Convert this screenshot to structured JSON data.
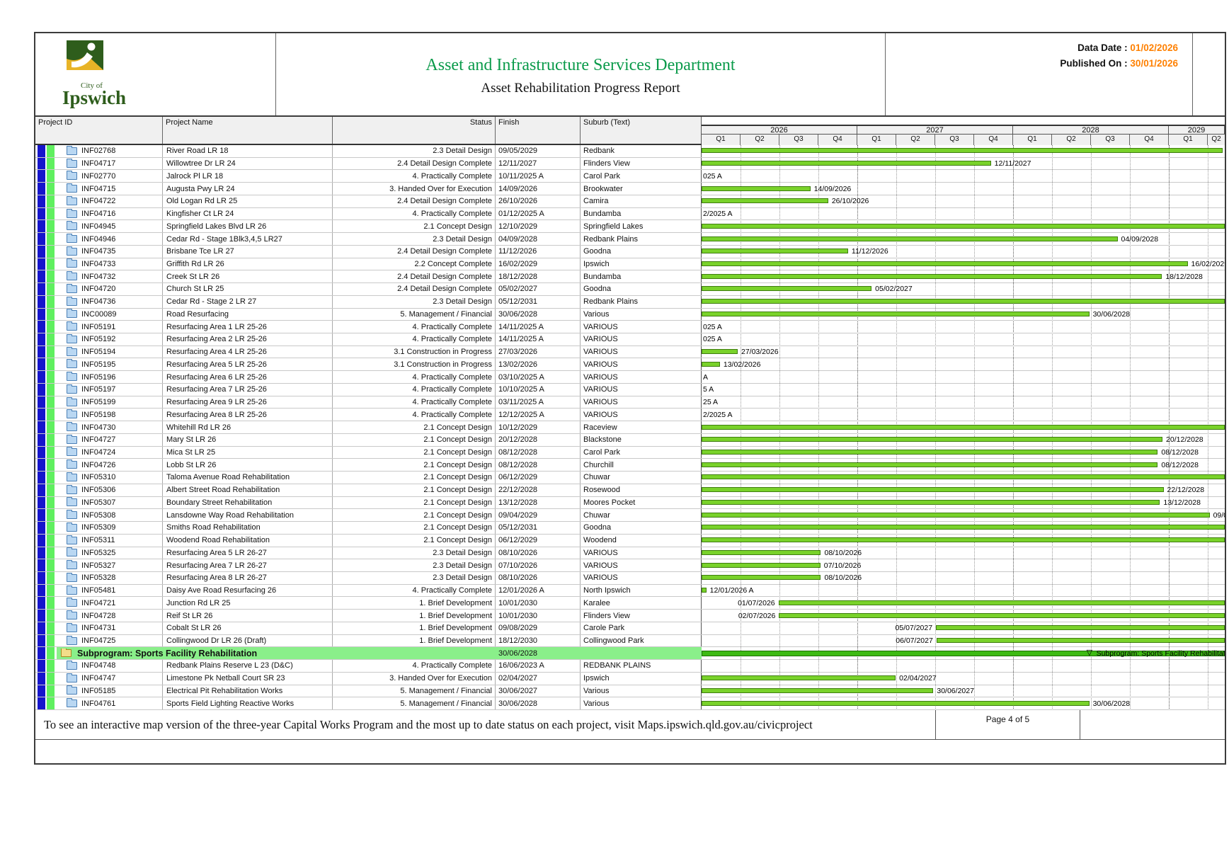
{
  "header": {
    "logo": {
      "city_of": "City of",
      "name": "Ipswich"
    },
    "title": "Asset and Infrastructure Services Department",
    "subtitle": "Asset Rehabilitation Progress Report",
    "data_date_label": "Data Date :",
    "data_date": "01/02/2026",
    "published_label": "Published On :",
    "published": "30/01/2026",
    "title_green": "#0a9a4a",
    "accent_orange": "#FF8000"
  },
  "columns": {
    "id": "Project ID",
    "name": "Project Name",
    "status": "Status",
    "finish": "Finish",
    "suburb": "Suburb (Text)"
  },
  "timeline": {
    "years": [
      {
        "label": "2026",
        "quarters": [
          "Q1",
          "Q2",
          "Q3",
          "Q4"
        ]
      },
      {
        "label": "2027",
        "quarters": [
          "Q1",
          "Q2",
          "Q3",
          "Q4"
        ]
      },
      {
        "label": "2028",
        "quarters": [
          "Q1",
          "Q2",
          "Q3",
          "Q4"
        ]
      },
      {
        "label": "2029",
        "quarters": [
          "Q1",
          "Q2"
        ]
      }
    ],
    "bar_color": "#79d22a",
    "subprogram_bar_color": "#3dba13"
  },
  "rows": [
    {
      "i": "INF02768",
      "n": "River Road LR 18",
      "s": "2.3 Detail Design",
      "f": "09/05/2029",
      "b": "Redbank",
      "g": {
        "m": "end",
        "e": 0.996,
        "l": "09/05/2029"
      }
    },
    {
      "i": "INF04717",
      "n": "Willowtree Dr LR 24",
      "s": "2.4 Detail Design Complete",
      "f": "12/11/2027",
      "b": "Flinders View",
      "g": {
        "m": "end",
        "e": 0.553,
        "l": "12/11/2027"
      }
    },
    {
      "i": "INF02770",
      "n": "Jalrock Pl LR 18",
      "s": "4. Practically Complete",
      "f": "10/11/2025 A",
      "b": "Carol Park",
      "g": {
        "m": "clip",
        "l": "025 A"
      }
    },
    {
      "i": "INF04715",
      "n": "Augusta Pwy LR 24",
      "s": "3. Handed Over for Execution",
      "f": "14/09/2026",
      "b": "Brookwater",
      "g": {
        "m": "end",
        "e": 0.208,
        "l": "14/09/2026"
      }
    },
    {
      "i": "INF04722",
      "n": "Old Logan Rd LR 25",
      "s": "2.4 Detail Design Complete",
      "f": "26/10/2026",
      "b": "Camira",
      "g": {
        "m": "end",
        "e": 0.242,
        "l": "26/10/2026"
      }
    },
    {
      "i": "INF04716",
      "n": "Kingfisher Ct LR 24",
      "s": "4. Practically Complete",
      "f": "01/12/2025 A",
      "b": "Bundamba",
      "g": {
        "m": "clip",
        "l": "2/2025 A"
      }
    },
    {
      "i": "INF04945",
      "n": "Springfield Lakes Blvd LR 26",
      "s": "2.1 Concept Design",
      "f": "12/10/2029",
      "b": "Springfield Lakes",
      "g": {
        "m": "end",
        "e": 1.0,
        "l": ""
      }
    },
    {
      "i": "INF04946",
      "n": "Cedar Rd - Stage 1Blk3,4,5 LR27",
      "s": "2.3 Detail Design",
      "f": "04/09/2028",
      "b": "Redbank Plains",
      "g": {
        "m": "end",
        "e": 0.795,
        "l": "04/09/2028"
      }
    },
    {
      "i": "INF04735",
      "n": "Brisbane Tce LR 27",
      "s": "2.4 Detail Design Complete",
      "f": "11/12/2026",
      "b": "Goodna",
      "g": {
        "m": "end",
        "e": 0.28,
        "l": "11/12/2026"
      }
    },
    {
      "i": "INF04733",
      "n": "Griffith Rd LR 26",
      "s": "2.2 Concept Complete",
      "f": "16/02/2029",
      "b": "Ipswich",
      "g": {
        "m": "end",
        "e": 0.929,
        "l": "16/02/2029"
      }
    },
    {
      "i": "INF04732",
      "n": "Creek St LR 26",
      "s": "2.4 Detail Design Complete",
      "f": "18/12/2028",
      "b": "Bundamba",
      "g": {
        "m": "end",
        "e": 0.88,
        "l": "18/12/2028"
      }
    },
    {
      "i": "INF04720",
      "n": "Church St LR 25",
      "s": "2.4 Detail Design Complete",
      "f": "05/02/2027",
      "b": "Goodna",
      "g": {
        "m": "end",
        "e": 0.325,
        "l": "05/02/2027"
      }
    },
    {
      "i": "INF04736",
      "n": "Cedar Rd - Stage 2 LR 27",
      "s": "2.3 Detail Design",
      "f": "05/12/2031",
      "b": "Redbank Plains",
      "g": {
        "m": "end",
        "e": 1.0,
        "l": ""
      }
    },
    {
      "i": "INC00089",
      "n": "Road Resurfacing",
      "s": "5. Management / Financial",
      "f": "30/06/2028",
      "b": "Various",
      "g": {
        "m": "end",
        "e": 0.741,
        "l": "30/06/2028"
      }
    },
    {
      "i": "INF05191",
      "n": "Resurfacing Area 1 LR 25-26",
      "s": "4. Practically Complete",
      "f": "14/11/2025 A",
      "b": "VARIOUS",
      "g": {
        "m": "clip",
        "l": "025 A"
      }
    },
    {
      "i": "INF05192",
      "n": "Resurfacing Area 2 LR 25-26",
      "s": "4. Practically Complete",
      "f": "14/11/2025 A",
      "b": "VARIOUS",
      "g": {
        "m": "clip",
        "l": "025 A"
      }
    },
    {
      "i": "INF05194",
      "n": "Resurfacing Area 4 LR 25-26",
      "s": "3.1 Construction in Progress",
      "f": "27/03/2026",
      "b": "VARIOUS",
      "g": {
        "m": "end",
        "e": 0.069,
        "l": "27/03/2026"
      }
    },
    {
      "i": "INF05195",
      "n": "Resurfacing Area 5 LR 25-26",
      "s": "3.1 Construction in Progress",
      "f": "13/02/2026",
      "b": "VARIOUS",
      "g": {
        "m": "end",
        "e": 0.035,
        "l": "13/02/2026"
      }
    },
    {
      "i": "INF05196",
      "n": "Resurfacing Area 6 LR 25-26",
      "s": "4. Practically Complete",
      "f": "03/10/2025 A",
      "b": "VARIOUS",
      "g": {
        "m": "clip",
        "l": "A"
      }
    },
    {
      "i": "INF05197",
      "n": "Resurfacing Area 7 LR 25-26",
      "s": "4. Practically Complete",
      "f": "10/10/2025 A",
      "b": "VARIOUS",
      "g": {
        "m": "clip",
        "l": "5 A"
      }
    },
    {
      "i": "INF05199",
      "n": "Resurfacing Area 9 LR 25-26",
      "s": "4. Practically Complete",
      "f": "03/11/2025 A",
      "b": "VARIOUS",
      "g": {
        "m": "clip",
        "l": "25 A"
      }
    },
    {
      "i": "INF05198",
      "n": "Resurfacing Area 8 LR 25-26",
      "s": "4. Practically Complete",
      "f": "12/12/2025 A",
      "b": "VARIOUS",
      "g": {
        "m": "clip",
        "l": "2/2025 A"
      }
    },
    {
      "i": "INF04730",
      "n": "Whitehill Rd LR 26",
      "s": "2.1 Concept Design",
      "f": "10/12/2029",
      "b": "Raceview",
      "g": {
        "m": "end",
        "e": 1.0,
        "l": ""
      }
    },
    {
      "i": "INF04727",
      "n": "Mary St LR 26",
      "s": "2.1 Concept Design",
      "f": "20/12/2028",
      "b": "Blackstone",
      "g": {
        "m": "end",
        "e": 0.881,
        "l": "20/12/2028"
      }
    },
    {
      "i": "INF04724",
      "n": "Mica St LR 25",
      "s": "2.1 Concept Design",
      "f": "08/12/2028",
      "b": "Carol Park",
      "g": {
        "m": "end",
        "e": 0.872,
        "l": "08/12/2028"
      }
    },
    {
      "i": "INF04726",
      "n": "Lobb St LR 26",
      "s": "2.1 Concept Design",
      "f": "08/12/2028",
      "b": "Churchill",
      "g": {
        "m": "end",
        "e": 0.872,
        "l": "08/12/2028"
      }
    },
    {
      "i": "INF05310",
      "n": "Taloma Avenue Road Rehabilitation",
      "s": "2.1 Concept Design",
      "f": "06/12/2029",
      "b": "Chuwar",
      "g": {
        "m": "end",
        "e": 1.0,
        "l": ""
      }
    },
    {
      "i": "INF05306",
      "n": "Albert Street Road Rehabilitation",
      "s": "2.1 Concept Design",
      "f": "22/12/2028",
      "b": "Rosewood",
      "g": {
        "m": "end",
        "e": 0.883,
        "l": "22/12/2028"
      }
    },
    {
      "i": "INF05307",
      "n": "Boundary Street Rehabilitation",
      "s": "2.1 Concept Design",
      "f": "13/12/2028",
      "b": "Moores Pocket",
      "g": {
        "m": "end",
        "e": 0.876,
        "l": "13/12/2028"
      }
    },
    {
      "i": "INF05308",
      "n": "Lansdowne Way Road Rehabilitation",
      "s": "2.1 Concept Design",
      "f": "09/04/2029",
      "b": "Chuwar",
      "g": {
        "m": "end",
        "e": 0.971,
        "l": "09/04/2029"
      }
    },
    {
      "i": "INF05309",
      "n": "Smiths Road Rehabilitation",
      "s": "2.1 Concept Design",
      "f": "05/12/2031",
      "b": "Goodna",
      "g": {
        "m": "end",
        "e": 1.0,
        "l": ""
      }
    },
    {
      "i": "INF05311",
      "n": "Woodend Road Rehabilitation",
      "s": "2.1 Concept Design",
      "f": "06/12/2029",
      "b": "Woodend",
      "g": {
        "m": "end",
        "e": 1.0,
        "l": ""
      }
    },
    {
      "i": "INF05325",
      "n": "Resurfacing Area 5 LR 26-27",
      "s": "2.3 Detail Design",
      "f": "08/10/2026",
      "b": "VARIOUS",
      "g": {
        "m": "end",
        "e": 0.228,
        "l": "08/10/2026"
      }
    },
    {
      "i": "INF05327",
      "n": "Resurfacing Area 7 LR 26-27",
      "s": "2.3 Detail Design",
      "f": "07/10/2026",
      "b": "VARIOUS",
      "g": {
        "m": "end",
        "e": 0.227,
        "l": "07/10/2026"
      }
    },
    {
      "i": "INF05328",
      "n": "Resurfacing Area 8 LR 26-27",
      "s": "2.3 Detail Design",
      "f": "08/10/2026",
      "b": "VARIOUS",
      "g": {
        "m": "end",
        "e": 0.228,
        "l": "08/10/2026"
      }
    },
    {
      "i": "INF05481",
      "n": "Daisy Ave Road Resurfacing 26",
      "s": "4. Practically Complete",
      "f": "12/01/2026 A",
      "b": "North Ipswich",
      "g": {
        "m": "end",
        "e": 0.009,
        "l": "12/01/2026 A"
      }
    },
    {
      "i": "INF04721",
      "n": "Junction Rd LR 25",
      "s": "1. Brief Development",
      "f": "10/01/2030",
      "b": "Karalee",
      "g": {
        "m": "start",
        "st": 0.147,
        "l": "01/07/2026"
      }
    },
    {
      "i": "INF04728",
      "n": "Reif St LR 26",
      "s": "1. Brief Development",
      "f": "10/01/2030",
      "b": "Flinders View",
      "g": {
        "m": "start",
        "st": 0.148,
        "l": "02/07/2026"
      }
    },
    {
      "i": "INF04731",
      "n": "Cobalt St LR 26",
      "s": "1. Brief Development",
      "f": "09/08/2029",
      "b": "Carole Park",
      "g": {
        "m": "start",
        "st": 0.448,
        "l": "05/07/2027"
      }
    },
    {
      "i": "INF04725",
      "n": "Collingwood Dr LR 26 (Draft)",
      "s": "1. Brief Development",
      "f": "18/12/2030",
      "b": "Collingwood Park",
      "g": {
        "m": "start",
        "st": 0.449,
        "l": "06/07/2027"
      }
    },
    {
      "kind": "sub",
      "title": "Subprogram: Sports Facility Rehabilitation",
      "f": "30/06/2028",
      "marker": 0.741,
      "label": "Subprogram: Sports Facility Rehabilitation"
    },
    {
      "i": "INF04748",
      "n": "Redbank Plains Reserve L 23 (D&C)",
      "s": "4. Practically Complete",
      "f": "16/06/2023 A",
      "b": "REDBANK PLAINS",
      "g": {
        "m": "none"
      }
    },
    {
      "i": "INF04747",
      "n": "Limestone Pk Netball Court SR 23",
      "s": "3. Handed Over for Execution",
      "f": "02/04/2027",
      "b": "Ipswich",
      "g": {
        "m": "end",
        "e": 0.371,
        "l": "02/04/2027"
      }
    },
    {
      "i": "INF05185",
      "n": "Electrical Pit Rehabilitation Works",
      "s": "5. Management / Financial",
      "f": "30/06/2027",
      "b": "Various",
      "g": {
        "m": "end",
        "e": 0.443,
        "l": "30/06/2027"
      }
    },
    {
      "i": "INF04761",
      "n": "Sports Field Lighting Reactive Works",
      "s": "5. Management / Financial",
      "f": "30/06/2028",
      "b": "Various",
      "g": {
        "m": "end",
        "e": 0.741,
        "l": "30/06/2028"
      }
    }
  ],
  "footer": {
    "note": "To see an interactive map version of the three-year Capital Works Program and the most up to date status on each project, visit Maps.ipswich.qld.gov.au/civicproject",
    "page": "Page 4 of 5"
  }
}
